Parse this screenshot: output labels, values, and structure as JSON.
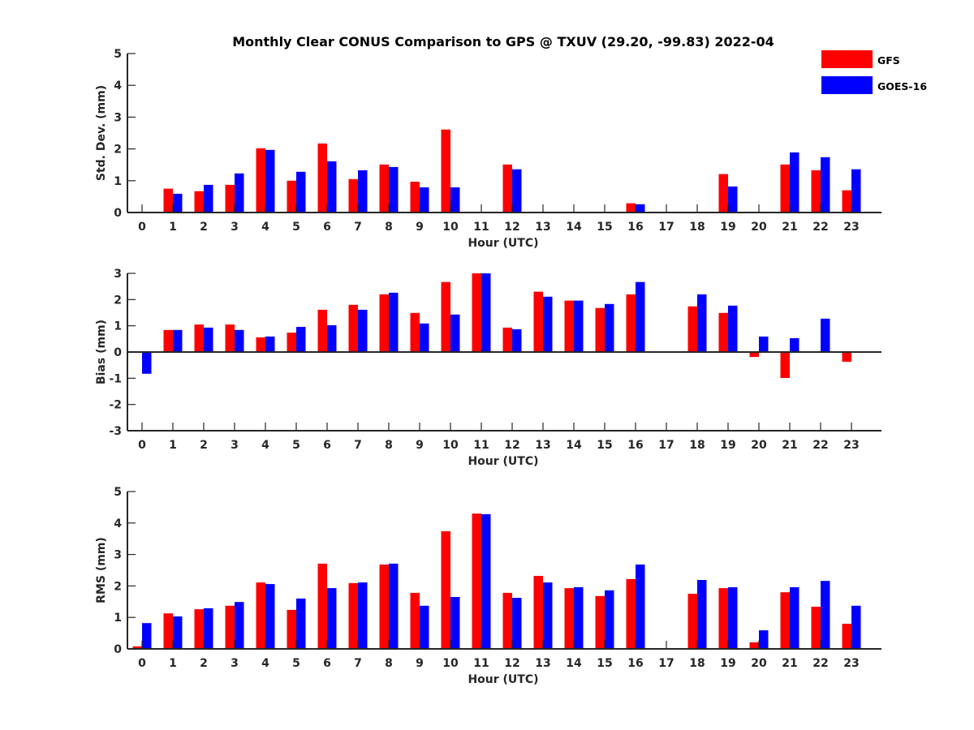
{
  "chart_data": [
    {
      "type": "bar",
      "panel": "std-dev",
      "title": "Monthly Clear CONUS Comparison to GPS @ TXUV (29.20, -99.83) 2022-04",
      "xlabel": "Hour (UTC)",
      "ylabel": "Std. Dev. (mm)",
      "ylim": [
        0,
        5
      ],
      "yticks": [
        "0",
        "1",
        "2",
        "3",
        "4",
        "5"
      ],
      "categories": [
        "0",
        "1",
        "2",
        "3",
        "4",
        "5",
        "6",
        "7",
        "8",
        "9",
        "10",
        "11",
        "12",
        "13",
        "14",
        "15",
        "16",
        "17",
        "18",
        "19",
        "20",
        "21",
        "22",
        "23"
      ],
      "series": [
        {
          "name": "GFS",
          "color": "#ff0000",
          "values": [
            null,
            0.75,
            0.67,
            0.87,
            2.02,
            1.0,
            2.17,
            1.05,
            1.51,
            0.97,
            2.61,
            null,
            1.51,
            null,
            null,
            null,
            0.29,
            null,
            null,
            1.21,
            null,
            1.51,
            1.33,
            0.7
          ]
        },
        {
          "name": "GOES-16",
          "color": "#0000ff",
          "values": [
            null,
            0.59,
            0.87,
            1.23,
            1.97,
            1.28,
            1.61,
            1.33,
            1.43,
            0.79,
            0.79,
            null,
            1.36,
            null,
            null,
            null,
            0.26,
            null,
            null,
            0.82,
            null,
            1.89,
            1.74,
            1.36
          ]
        }
      ],
      "legend": {
        "position": "top-right",
        "entries": [
          "GFS",
          "GOES-16"
        ]
      }
    },
    {
      "type": "bar",
      "panel": "bias",
      "xlabel": "Hour (UTC)",
      "ylabel": "Bias (mm)",
      "ylim": [
        -3,
        3
      ],
      "yticks": [
        "-3",
        "-2",
        "-1",
        "0",
        "1",
        "2",
        "3"
      ],
      "categories": [
        "0",
        "1",
        "2",
        "3",
        "4",
        "5",
        "6",
        "7",
        "8",
        "9",
        "10",
        "11",
        "12",
        "13",
        "14",
        "15",
        "16",
        "17",
        "18",
        "19",
        "20",
        "21",
        "22",
        "23"
      ],
      "series": [
        {
          "name": "GFS",
          "color": "#ff0000",
          "values": [
            -0.02,
            0.84,
            1.05,
            1.05,
            0.56,
            0.74,
            1.61,
            1.8,
            2.2,
            1.49,
            2.67,
            3.0,
            0.93,
            2.3,
            1.96,
            1.68,
            2.2,
            null,
            1.74,
            1.49,
            -0.19,
            -0.99,
            -0.03,
            -0.37
          ]
        },
        {
          "name": "GOES-16",
          "color": "#0000ff",
          "values": [
            -0.83,
            0.84,
            0.93,
            0.84,
            0.59,
            0.96,
            1.02,
            1.61,
            2.26,
            1.09,
            1.43,
            3.0,
            0.87,
            2.11,
            1.96,
            1.83,
            2.67,
            null,
            2.2,
            1.77,
            0.59,
            0.53,
            1.27,
            -0.03
          ]
        }
      ]
    },
    {
      "type": "bar",
      "panel": "rms",
      "xlabel": "Hour (UTC)",
      "ylabel": "RMS (mm)",
      "ylim": [
        0,
        5
      ],
      "yticks": [
        "0",
        "1",
        "2",
        "3",
        "4",
        "5"
      ],
      "categories": [
        "0",
        "1",
        "2",
        "3",
        "4",
        "5",
        "6",
        "7",
        "8",
        "9",
        "10",
        "11",
        "12",
        "13",
        "14",
        "15",
        "16",
        "17",
        "18",
        "19",
        "20",
        "21",
        "22",
        "23"
      ],
      "series": [
        {
          "name": "GFS",
          "color": "#ff0000",
          "values": [
            0.08,
            1.13,
            1.26,
            1.37,
            2.11,
            1.24,
            2.71,
            2.09,
            2.68,
            1.78,
            3.74,
            4.3,
            1.78,
            2.32,
            1.93,
            1.68,
            2.22,
            null,
            1.75,
            1.93,
            0.21,
            1.8,
            1.34,
            0.8
          ]
        },
        {
          "name": "GOES-16",
          "color": "#0000ff",
          "values": [
            0.82,
            1.03,
            1.29,
            1.49,
            2.06,
            1.6,
            1.93,
            2.11,
            2.71,
            1.37,
            1.65,
            4.28,
            1.62,
            2.11,
            1.96,
            1.86,
            2.68,
            null,
            2.19,
            1.96,
            0.59,
            1.96,
            2.16,
            1.37
          ]
        }
      ]
    }
  ]
}
